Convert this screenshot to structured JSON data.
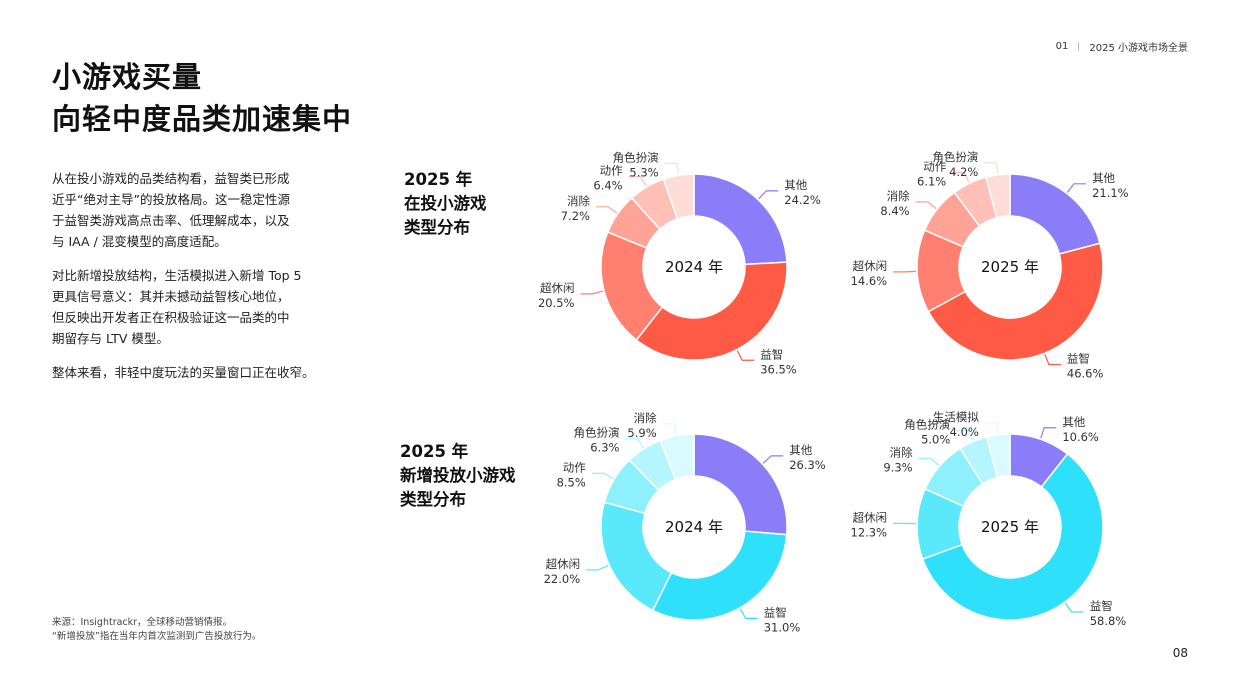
{
  "header": {
    "section_number": "01",
    "section_title": "2025 小游戏市场全景"
  },
  "title": {
    "line1": "小游戏买量",
    "line2": "向轻中度品类加速集中"
  },
  "paragraphs": [
    [
      "从在投小游戏的品类结构看，益智类已形成",
      "近乎“绝对主导”的投放格局。这一稳定性源",
      "于益智类游戏高点击率、低理解成本，以及",
      "与 IAA / 混变模型的高度适配。"
    ],
    [
      "对比新增投放结构，生活模拟进入新增 Top 5",
      "更具信号意义：其并未撼动益智核心地位，",
      "但反映出开发者正在积极验证这一品类的中",
      "期留存与 LTV 模型。"
    ],
    [
      "整体来看，非轻中度玩法的买量窗口正在收窄。"
    ]
  ],
  "section_labels": {
    "active": [
      "2025 年",
      "在投小游戏",
      "类型分布"
    ],
    "new": [
      "2025 年",
      "新增投放小游戏",
      "类型分布"
    ]
  },
  "footnote": {
    "line1": "来源：Insightrackr，全球移动营销情报。",
    "line2": "“新增投放”指在当年内首次监测到广告投放行为。"
  },
  "page_number": "08",
  "chart_data": [
    {
      "type": "donut",
      "center_label": "2024 年",
      "slices": [
        {
          "name": "其他",
          "value": 24.2,
          "color": "#8b7cf8"
        },
        {
          "name": "益智",
          "value": 36.5,
          "color": "#ff5a45"
        },
        {
          "name": "超休闲",
          "value": 20.5,
          "color": "#ff8070"
        },
        {
          "name": "消除",
          "value": 7.2,
          "color": "#ffa396"
        },
        {
          "name": "动作",
          "value": 6.4,
          "color": "#ffc0b8"
        },
        {
          "name": "角色扮演",
          "value": 5.3,
          "color": "#ffdcd7"
        }
      ]
    },
    {
      "type": "donut",
      "center_label": "2025 年",
      "slices": [
        {
          "name": "其他",
          "value": 21.1,
          "color": "#8b7cf8"
        },
        {
          "name": "益智",
          "value": 46.6,
          "color": "#ff5a45"
        },
        {
          "name": "超休闲",
          "value": 14.6,
          "color": "#ff8070"
        },
        {
          "name": "消除",
          "value": 8.4,
          "color": "#ffa396"
        },
        {
          "name": "动作",
          "value": 6.1,
          "color": "#ffc0b8"
        },
        {
          "name": "角色扮演",
          "value": 4.2,
          "color": "#ffdcd7"
        }
      ]
    },
    {
      "type": "donut",
      "center_label": "2024 年",
      "slices": [
        {
          "name": "其他",
          "value": 26.3,
          "color": "#8b7cf8"
        },
        {
          "name": "益智",
          "value": 31.0,
          "color": "#2fe0fa"
        },
        {
          "name": "超休闲",
          "value": 22.0,
          "color": "#5ae8fc"
        },
        {
          "name": "动作",
          "value": 8.5,
          "color": "#8ef0fd"
        },
        {
          "name": "角色扮演",
          "value": 6.3,
          "color": "#b5f5fe"
        },
        {
          "name": "消除",
          "value": 5.9,
          "color": "#d9fbff"
        }
      ]
    },
    {
      "type": "donut",
      "center_label": "2025 年",
      "slices": [
        {
          "name": "其他",
          "value": 10.6,
          "color": "#8b7cf8"
        },
        {
          "name": "益智",
          "value": 58.8,
          "color": "#2fe0fa"
        },
        {
          "name": "超休闲",
          "value": 12.3,
          "color": "#5ae8fc"
        },
        {
          "name": "消除",
          "value": 9.3,
          "color": "#8ef0fd"
        },
        {
          "name": "角色扮演",
          "value": 5.0,
          "color": "#b5f5fe"
        },
        {
          "name": "生活模拟",
          "value": 4.0,
          "color": "#d9fbff"
        }
      ]
    }
  ]
}
